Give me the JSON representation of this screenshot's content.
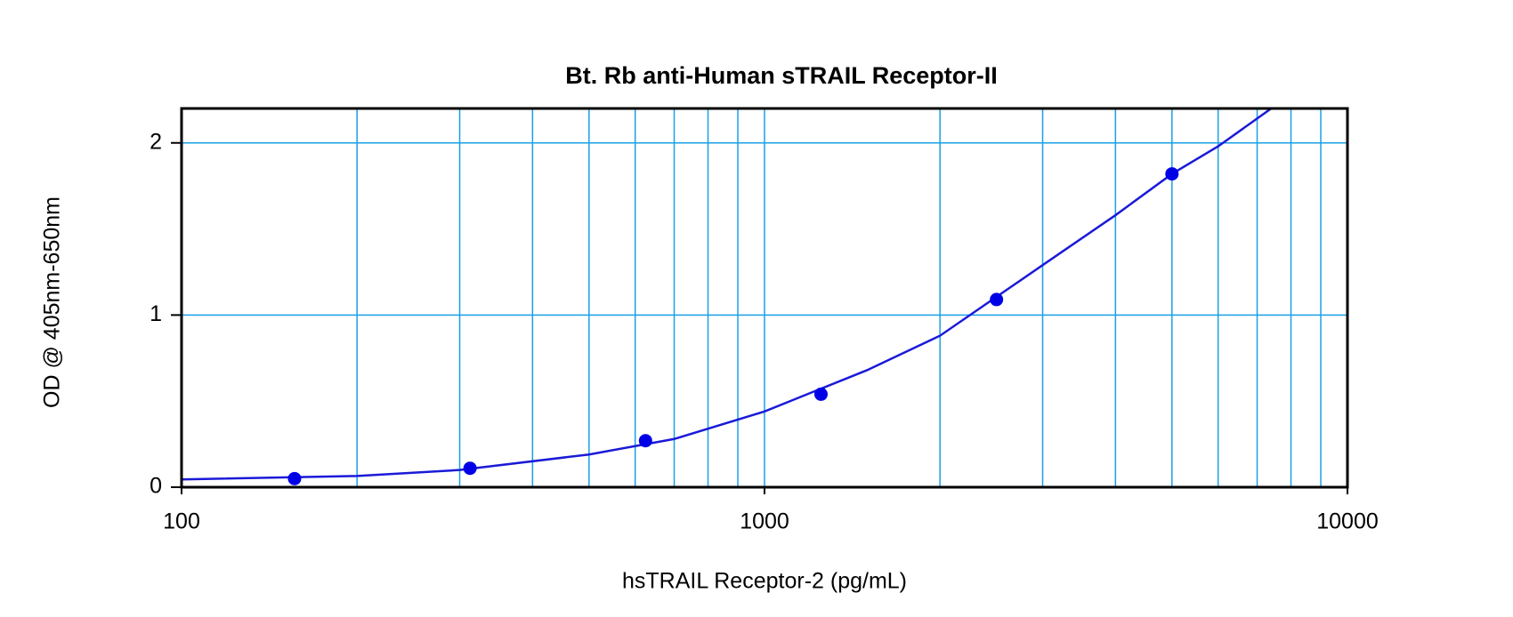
{
  "chart_data": {
    "type": "scatter",
    "title": "Bt. Rb anti-Human sTRAIL Receptor-II",
    "x_label": "hsTRAIL Receptor-2 (pg/mL)",
    "y_label": "OD @ 405nm-650nm",
    "x_scale": "log",
    "xlim": [
      100,
      10000
    ],
    "xticks": [
      100,
      1000,
      10000
    ],
    "xminor_grid": [
      200,
      300,
      400,
      500,
      600,
      700,
      800,
      900,
      2000,
      3000,
      4000,
      5000,
      6000,
      7000,
      8000,
      9000
    ],
    "ylim": [
      0,
      2.2
    ],
    "yticks": [
      0,
      1,
      2
    ],
    "grid": true,
    "grid_color": "#1aa0e6",
    "series": [
      {
        "color": "#0000e6",
        "x": [
          156.25,
          312.5,
          625,
          1250,
          2500,
          5000
        ],
        "values": [
          0.05,
          0.11,
          0.27,
          0.54,
          1.09,
          1.82
        ]
      }
    ],
    "fit": {
      "color": "#1a1ad8",
      "x": [
        100,
        200,
        300,
        500,
        700,
        1000,
        1500,
        2000,
        3000,
        4000,
        5000,
        6000,
        7400
      ],
      "values": [
        0.045,
        0.065,
        0.1,
        0.19,
        0.28,
        0.44,
        0.68,
        0.88,
        1.29,
        1.58,
        1.82,
        1.98,
        2.2
      ]
    }
  }
}
